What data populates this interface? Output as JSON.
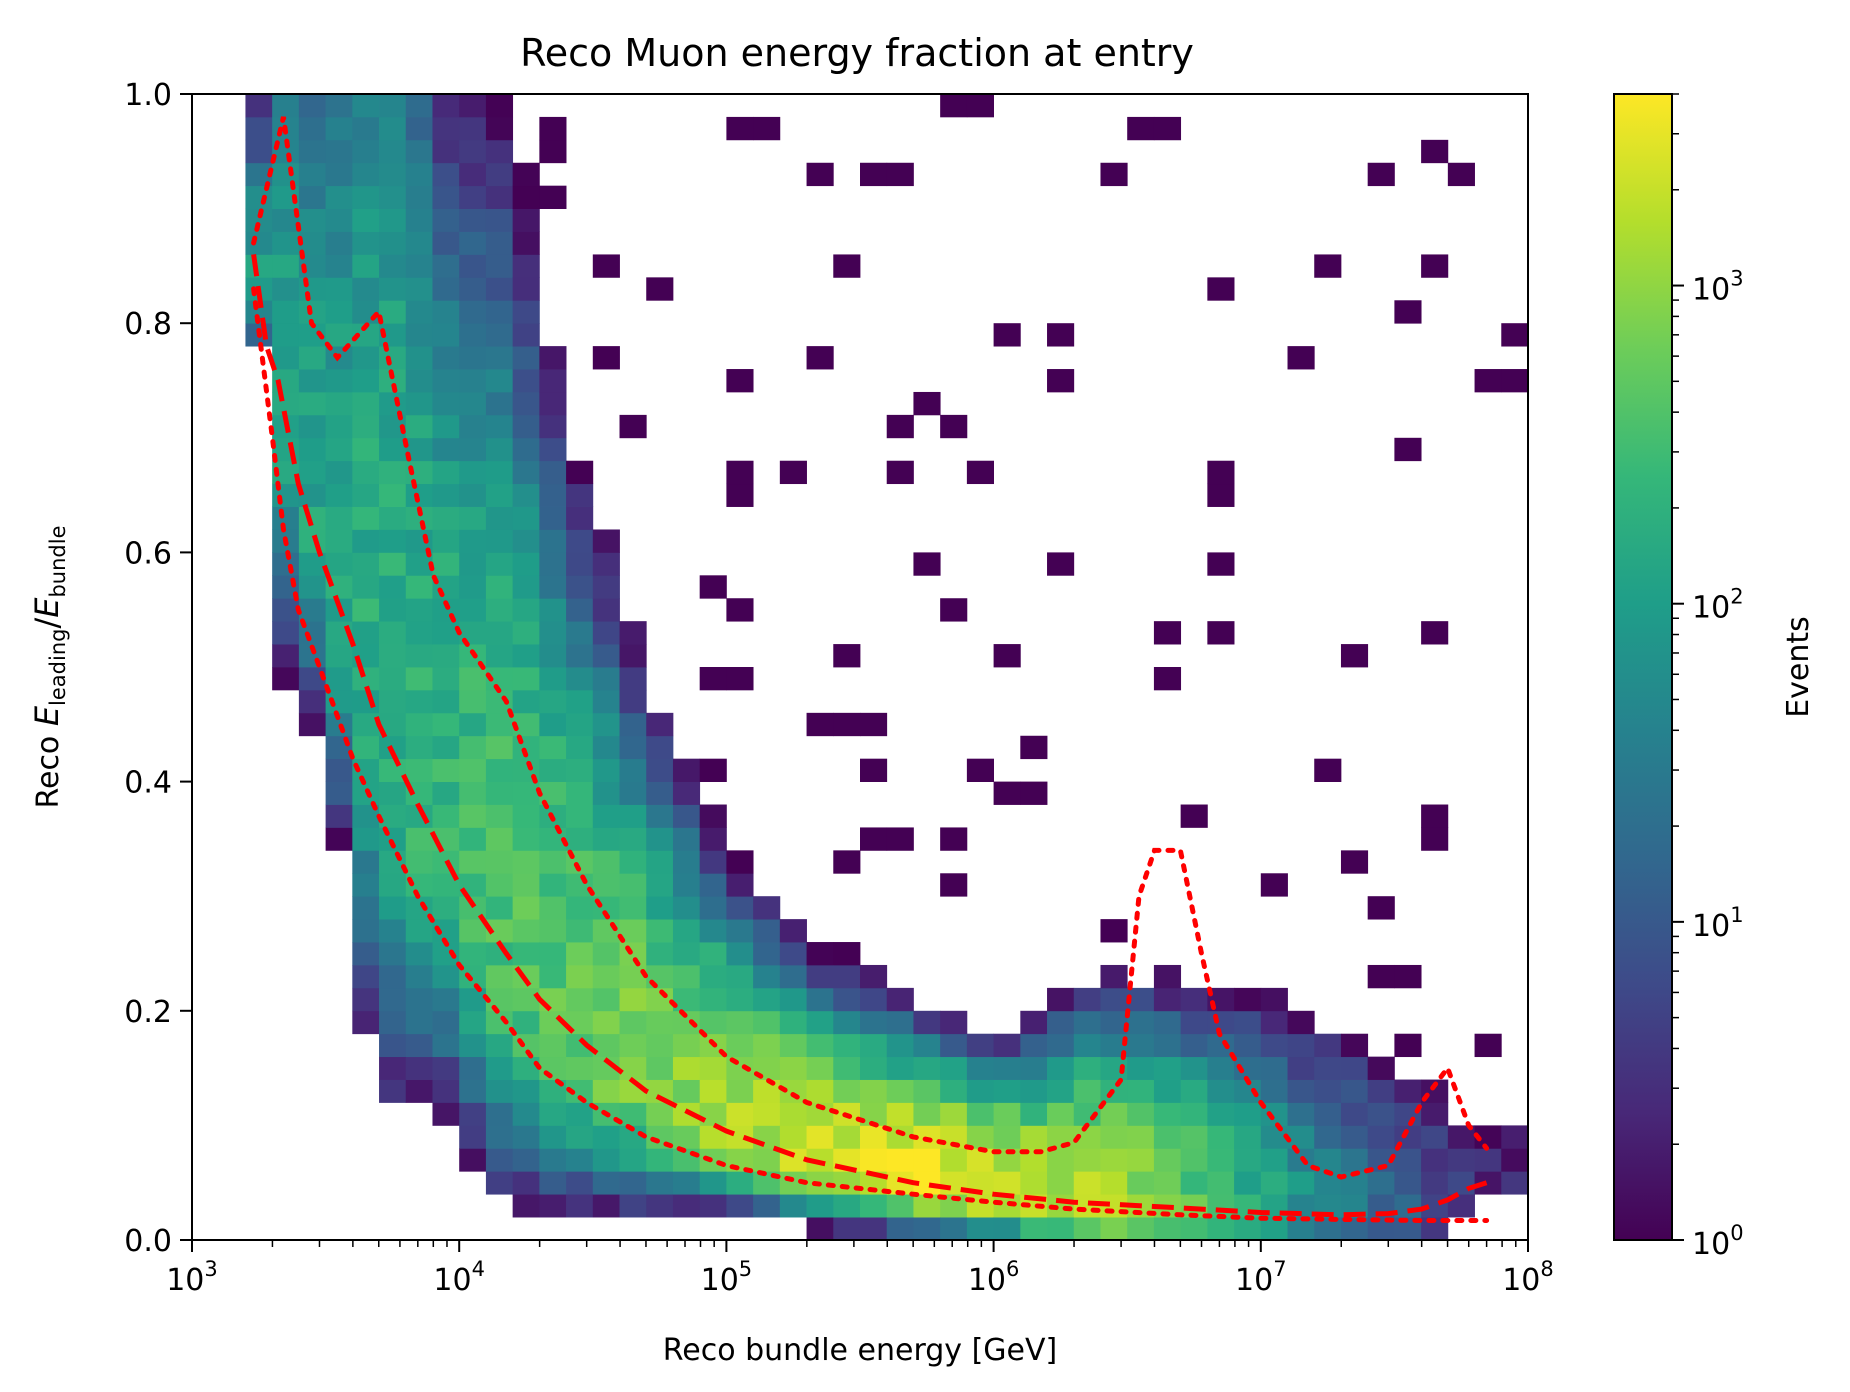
{
  "chart_data": {
    "type": "heatmap",
    "title": "Reco Muon energy fraction at entry",
    "xlabel": "Reco bundle energy [GeV]",
    "ylabel": {
      "prefix": "Reco ",
      "num_var": "E",
      "num_sub": "leading",
      "sep": "/",
      "den_var": "E",
      "den_sub": "bundle"
    },
    "xscale": "log",
    "xlim": [
      1000,
      100000000
    ],
    "ylim": [
      0.0,
      1.0
    ],
    "x_ticks": [
      {
        "value": 1000,
        "base": "10",
        "exp": "3"
      },
      {
        "value": 10000,
        "base": "10",
        "exp": "4"
      },
      {
        "value": 100000,
        "base": "10",
        "exp": "5"
      },
      {
        "value": 1000000,
        "base": "10",
        "exp": "6"
      },
      {
        "value": 10000000,
        "base": "10",
        "exp": "7"
      },
      {
        "value": 100000000,
        "base": "10",
        "exp": "8"
      }
    ],
    "y_ticks": [
      {
        "value": 0.0,
        "label": "0.0"
      },
      {
        "value": 0.2,
        "label": "0.2"
      },
      {
        "value": 0.4,
        "label": "0.4"
      },
      {
        "value": 0.6,
        "label": "0.6"
      },
      {
        "value": 0.8,
        "label": "0.8"
      },
      {
        "value": 1.0,
        "label": "1.0"
      }
    ],
    "colorbar": {
      "label": "Events",
      "scale": "log",
      "colormap": "viridis",
      "range": [
        1,
        4000
      ],
      "ticks": [
        {
          "value": 1,
          "base": "10",
          "exp": "0"
        },
        {
          "value": 10,
          "base": "10",
          "exp": "1"
        },
        {
          "value": 100,
          "base": "10",
          "exp": "2"
        },
        {
          "value": 1000,
          "base": "10",
          "exp": "3"
        }
      ]
    },
    "histogram": {
      "log10_x_bins": [
        3.0,
        8.0,
        50
      ],
      "y_bins": [
        0.0,
        1.0,
        50
      ],
      "note": "counts vs log10(reco bundle energy) and energy fraction; dense ridge following the median curve"
    },
    "series": [
      {
        "style": "dashed",
        "color": "#ff0000",
        "x": [
          1700,
          1900,
          2100,
          2500,
          3000,
          4000,
          5000,
          7000,
          10000,
          15000,
          20000,
          30000,
          50000,
          100000,
          200000,
          500000,
          1000000,
          2000000,
          5000000,
          10000000,
          20000000,
          30000000,
          40000000,
          50000000,
          60000000,
          70000000
        ],
        "y": [
          0.86,
          0.78,
          0.75,
          0.66,
          0.6,
          0.52,
          0.45,
          0.38,
          0.31,
          0.25,
          0.21,
          0.17,
          0.13,
          0.095,
          0.07,
          0.05,
          0.04,
          0.033,
          0.028,
          0.024,
          0.022,
          0.023,
          0.027,
          0.035,
          0.045,
          0.05
        ]
      },
      {
        "style": "dotted",
        "color": "#ff0000",
        "x": [
          1700,
          2200,
          2800,
          3500,
          5000,
          6500,
          8000,
          10000,
          15000,
          20000,
          30000,
          50000,
          100000,
          200000,
          500000,
          1000000,
          1500000,
          2000000,
          3000000,
          3500000,
          4000000,
          5000000,
          6000000,
          7000000,
          10000000,
          15000000,
          20000000,
          30000000,
          40000000,
          50000000,
          60000000,
          70000000
        ],
        "y": [
          0.87,
          0.98,
          0.8,
          0.77,
          0.81,
          0.68,
          0.58,
          0.53,
          0.47,
          0.39,
          0.31,
          0.23,
          0.16,
          0.12,
          0.09,
          0.077,
          0.077,
          0.085,
          0.14,
          0.3,
          0.34,
          0.34,
          0.25,
          0.18,
          0.12,
          0.065,
          0.055,
          0.065,
          0.12,
          0.15,
          0.1,
          0.08
        ]
      },
      {
        "style": "dotted",
        "color": "#ff0000",
        "x": [
          1700,
          2000,
          2200,
          2500,
          3000,
          4000,
          5000,
          7000,
          10000,
          15000,
          20000,
          30000,
          50000,
          100000,
          200000,
          500000,
          1000000,
          2000000,
          5000000,
          10000000,
          20000000,
          40000000,
          70000000
        ],
        "y": [
          0.83,
          0.7,
          0.62,
          0.55,
          0.5,
          0.42,
          0.37,
          0.3,
          0.24,
          0.19,
          0.15,
          0.12,
          0.09,
          0.065,
          0.05,
          0.04,
          0.033,
          0.027,
          0.022,
          0.019,
          0.018,
          0.017,
          0.017
        ]
      }
    ]
  }
}
